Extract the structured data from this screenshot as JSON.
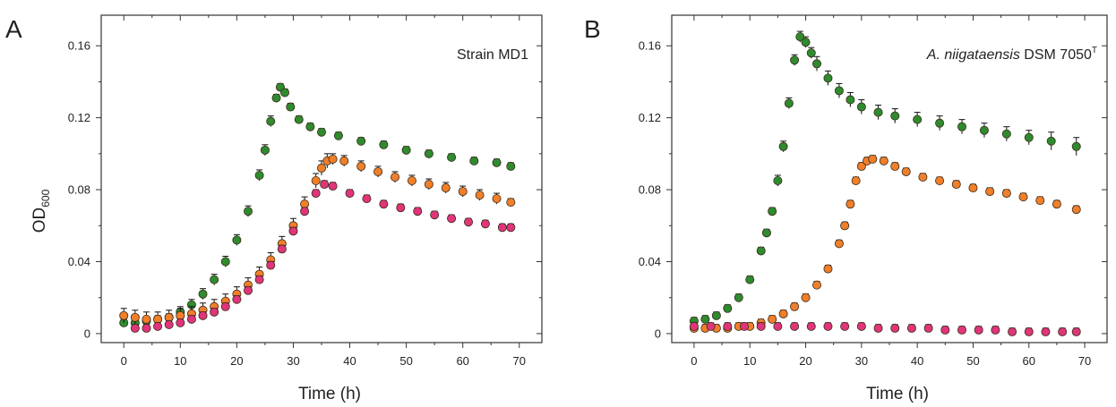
{
  "chart_data": [
    {
      "type": "scatter",
      "panel_label": "A",
      "annotation": {
        "text": "Strain MD1",
        "italic": "",
        "superscript": ""
      },
      "xlabel": "Time (h)",
      "ylabel": {
        "base": "OD",
        "subscript": "600"
      },
      "xlim": [
        -4,
        74
      ],
      "ylim": [
        -0.005,
        0.177
      ],
      "xticks": [
        0,
        10,
        20,
        30,
        40,
        50,
        60,
        70
      ],
      "yticks": [
        0,
        0.04,
        0.08,
        0.12,
        0.16
      ],
      "ytick_labels": [
        "0",
        "0.04",
        "0.08",
        "0.12",
        "0.16"
      ],
      "grid": false,
      "series": [
        {
          "color": "#2e8b2e",
          "points": [
            [
              0,
              0.006
            ],
            [
              2,
              0.006
            ],
            [
              4,
              0.007
            ],
            [
              6,
              0.008
            ],
            [
              8,
              0.009
            ],
            [
              10,
              0.012
            ],
            [
              12,
              0.016
            ],
            [
              14,
              0.022
            ],
            [
              16,
              0.03
            ],
            [
              18,
              0.04
            ],
            [
              20,
              0.052
            ],
            [
              22,
              0.068
            ],
            [
              24,
              0.088
            ],
            [
              25,
              0.102
            ],
            [
              26,
              0.118
            ],
            [
              27,
              0.131
            ],
            [
              27.7,
              0.137
            ],
            [
              28.5,
              0.134
            ],
            [
              29.5,
              0.126
            ],
            [
              31,
              0.119
            ],
            [
              33,
              0.115
            ],
            [
              35,
              0.112
            ],
            [
              38,
              0.11
            ],
            [
              42,
              0.107
            ],
            [
              46,
              0.105
            ],
            [
              50,
              0.102
            ],
            [
              54,
              0.1
            ],
            [
              58,
              0.098
            ],
            [
              62,
              0.096
            ],
            [
              66,
              0.095
            ],
            [
              68.5,
              0.093
            ]
          ],
          "errors": [
            0.002,
            0.002,
            0.002,
            0.002,
            0.002,
            0.003,
            0.003,
            0.003,
            0.003,
            0.003,
            0.003,
            0.003,
            0.003,
            0.003,
            0.003,
            0.002,
            0.002,
            0.002,
            0.002,
            0.002,
            0.002,
            0.002,
            0.002,
            0.002,
            0.002,
            0.002,
            0.002,
            0.002,
            0.002,
            0.002,
            0.002
          ]
        },
        {
          "color": "#f07f2a",
          "points": [
            [
              0,
              0.01
            ],
            [
              2,
              0.009
            ],
            [
              4,
              0.008
            ],
            [
              6,
              0.008
            ],
            [
              8,
              0.009
            ],
            [
              10,
              0.01
            ],
            [
              12,
              0.011
            ],
            [
              14,
              0.013
            ],
            [
              16,
              0.015
            ],
            [
              18,
              0.018
            ],
            [
              20,
              0.022
            ],
            [
              22,
              0.027
            ],
            [
              24,
              0.033
            ],
            [
              26,
              0.041
            ],
            [
              28,
              0.05
            ],
            [
              30,
              0.06
            ],
            [
              32,
              0.072
            ],
            [
              34,
              0.085
            ],
            [
              35,
              0.092
            ],
            [
              36,
              0.096
            ],
            [
              37,
              0.097
            ],
            [
              39,
              0.096
            ],
            [
              42,
              0.093
            ],
            [
              45,
              0.09
            ],
            [
              48,
              0.087
            ],
            [
              51,
              0.085
            ],
            [
              54,
              0.083
            ],
            [
              57,
              0.081
            ],
            [
              60,
              0.079
            ],
            [
              63,
              0.077
            ],
            [
              66,
              0.075
            ],
            [
              68.5,
              0.073
            ]
          ],
          "errors": [
            0.004,
            0.004,
            0.004,
            0.004,
            0.004,
            0.004,
            0.004,
            0.004,
            0.004,
            0.004,
            0.004,
            0.004,
            0.004,
            0.004,
            0.004,
            0.004,
            0.004,
            0.004,
            0.004,
            0.004,
            0.003,
            0.003,
            0.003,
            0.003,
            0.003,
            0.003,
            0.003,
            0.003,
            0.003,
            0.003,
            0.003,
            0.002
          ]
        },
        {
          "color": "#e0357a",
          "points": [
            [
              2,
              0.003
            ],
            [
              4,
              0.003
            ],
            [
              6,
              0.004
            ],
            [
              8,
              0.005
            ],
            [
              10,
              0.006
            ],
            [
              12,
              0.008
            ],
            [
              14,
              0.01
            ],
            [
              16,
              0.012
            ],
            [
              18,
              0.015
            ],
            [
              20,
              0.019
            ],
            [
              22,
              0.024
            ],
            [
              24,
              0.03
            ],
            [
              26,
              0.038
            ],
            [
              28,
              0.047
            ],
            [
              30,
              0.057
            ],
            [
              32,
              0.068
            ],
            [
              34,
              0.078
            ],
            [
              35.5,
              0.083
            ],
            [
              37,
              0.082
            ],
            [
              40,
              0.078
            ],
            [
              43,
              0.075
            ],
            [
              46,
              0.072
            ],
            [
              49,
              0.07
            ],
            [
              52,
              0.068
            ],
            [
              55,
              0.066
            ],
            [
              58,
              0.064
            ],
            [
              61,
              0.062
            ],
            [
              64,
              0.061
            ],
            [
              67,
              0.059
            ],
            [
              68.5,
              0.059
            ]
          ],
          "errors": [
            0.002,
            0.002,
            0.002,
            0.002,
            0.002,
            0.002,
            0.002,
            0.002,
            0.002,
            0.002,
            0.002,
            0.002,
            0.002,
            0.002,
            0.002,
            0.002,
            0.002,
            0.002,
            0.002,
            0.002,
            0.002,
            0.002,
            0.002,
            0.002,
            0.002,
            0.002,
            0.002,
            0.002,
            0.002,
            0.002
          ]
        }
      ]
    },
    {
      "type": "scatter",
      "panel_label": "B",
      "annotation": {
        "text": " DSM 7050",
        "italic": "A. niigataensis",
        "superscript": "T"
      },
      "xlabel": "Time (h)",
      "ylabel": {
        "base": "",
        "subscript": ""
      },
      "xlim": [
        -4,
        74
      ],
      "ylim": [
        -0.005,
        0.177
      ],
      "xticks": [
        0,
        10,
        20,
        30,
        40,
        50,
        60,
        70
      ],
      "yticks": [
        0,
        0.04,
        0.08,
        0.12,
        0.16
      ],
      "ytick_labels": [
        "0",
        "0.04",
        "0.08",
        "0.12",
        "0.16"
      ],
      "grid": false,
      "series": [
        {
          "color": "#2e8b2e",
          "points": [
            [
              0,
              0.007
            ],
            [
              2,
              0.008
            ],
            [
              4,
              0.01
            ],
            [
              6,
              0.014
            ],
            [
              8,
              0.02
            ],
            [
              10,
              0.03
            ],
            [
              12,
              0.046
            ],
            [
              13,
              0.056
            ],
            [
              14,
              0.068
            ],
            [
              15,
              0.085
            ],
            [
              16,
              0.104
            ],
            [
              17,
              0.128
            ],
            [
              18,
              0.152
            ],
            [
              19,
              0.165
            ],
            [
              20,
              0.162
            ],
            [
              21,
              0.156
            ],
            [
              22,
              0.15
            ],
            [
              24,
              0.142
            ],
            [
              26,
              0.135
            ],
            [
              28,
              0.13
            ],
            [
              30,
              0.126
            ],
            [
              33,
              0.123
            ],
            [
              36,
              0.121
            ],
            [
              40,
              0.119
            ],
            [
              44,
              0.117
            ],
            [
              48,
              0.115
            ],
            [
              52,
              0.113
            ],
            [
              56,
              0.111
            ],
            [
              60,
              0.109
            ],
            [
              64,
              0.107
            ],
            [
              68.5,
              0.104
            ]
          ],
          "errors": [
            0.002,
            0.002,
            0.002,
            0.002,
            0.002,
            0.002,
            0.002,
            0.002,
            0.002,
            0.003,
            0.003,
            0.003,
            0.003,
            0.003,
            0.003,
            0.003,
            0.004,
            0.004,
            0.004,
            0.004,
            0.004,
            0.004,
            0.004,
            0.004,
            0.004,
            0.004,
            0.004,
            0.004,
            0.004,
            0.005,
            0.005
          ]
        },
        {
          "color": "#f07f2a",
          "points": [
            [
              0,
              0.003
            ],
            [
              2,
              0.003
            ],
            [
              4,
              0.003
            ],
            [
              6,
              0.003
            ],
            [
              8,
              0.004
            ],
            [
              10,
              0.004
            ],
            [
              12,
              0.006
            ],
            [
              14,
              0.008
            ],
            [
              16,
              0.011
            ],
            [
              18,
              0.015
            ],
            [
              20,
              0.02
            ],
            [
              22,
              0.027
            ],
            [
              24,
              0.036
            ],
            [
              26,
              0.05
            ],
            [
              27,
              0.06
            ],
            [
              28,
              0.072
            ],
            [
              29,
              0.085
            ],
            [
              30,
              0.093
            ],
            [
              31,
              0.096
            ],
            [
              32,
              0.097
            ],
            [
              34,
              0.096
            ],
            [
              36,
              0.093
            ],
            [
              38,
              0.09
            ],
            [
              41,
              0.087
            ],
            [
              44,
              0.085
            ],
            [
              47,
              0.083
            ],
            [
              50,
              0.081
            ],
            [
              53,
              0.079
            ],
            [
              56,
              0.078
            ],
            [
              59,
              0.076
            ],
            [
              62,
              0.074
            ],
            [
              65,
              0.072
            ],
            [
              68.5,
              0.069
            ]
          ],
          "errors": [
            0.002,
            0.002,
            0.002,
            0.002,
            0.002,
            0.002,
            0.002,
            0.002,
            0.002,
            0.002,
            0.002,
            0.002,
            0.002,
            0.002,
            0.002,
            0.002,
            0.002,
            0.002,
            0.002,
            0.002,
            0.002,
            0.002,
            0.002,
            0.002,
            0.002,
            0.002,
            0.002,
            0.002,
            0.002,
            0.002,
            0.002,
            0.002,
            0.002
          ]
        },
        {
          "color": "#e0357a",
          "points": [
            [
              0,
              0.004
            ],
            [
              3,
              0.004
            ],
            [
              6,
              0.004
            ],
            [
              9,
              0.004
            ],
            [
              12,
              0.004
            ],
            [
              15,
              0.004
            ],
            [
              18,
              0.004
            ],
            [
              21,
              0.004
            ],
            [
              24,
              0.004
            ],
            [
              27,
              0.004
            ],
            [
              30,
              0.004
            ],
            [
              33,
              0.003
            ],
            [
              36,
              0.003
            ],
            [
              39,
              0.003
            ],
            [
              42,
              0.003
            ],
            [
              45,
              0.002
            ],
            [
              48,
              0.002
            ],
            [
              51,
              0.002
            ],
            [
              54,
              0.002
            ],
            [
              57,
              0.001
            ],
            [
              60,
              0.001
            ],
            [
              63,
              0.001
            ],
            [
              66,
              0.001
            ],
            [
              68.5,
              0.001
            ]
          ],
          "errors": [
            0.002,
            0.002,
            0.002,
            0.002,
            0.002,
            0.002,
            0.002,
            0.002,
            0.002,
            0.002,
            0.002,
            0.002,
            0.002,
            0.002,
            0.002,
            0.002,
            0.002,
            0.002,
            0.002,
            0.002,
            0.002,
            0.002,
            0.002,
            0.002
          ]
        }
      ]
    }
  ]
}
